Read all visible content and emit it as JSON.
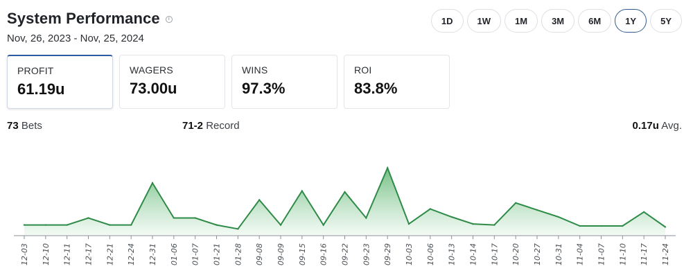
{
  "header": {
    "title": "System Performance",
    "info_icon": "info-icon",
    "date_range": "Nov, 26, 2023 - Nov, 25, 2024"
  },
  "ranges": [
    "1D",
    "1W",
    "1M",
    "3M",
    "6M",
    "1Y",
    "5Y"
  ],
  "active_range": "1Y",
  "stats": [
    {
      "label": "PROFIT",
      "value": "61.19u"
    },
    {
      "label": "WAGERS",
      "value": "73.00u"
    },
    {
      "label": "WINS",
      "value": "97.3%"
    },
    {
      "label": "ROI",
      "value": "83.8%"
    }
  ],
  "summary": {
    "bets_value": "73",
    "bets_label": "Bets",
    "record_value": "71-2",
    "record_label": "Record",
    "avg_value": "0.17u",
    "avg_label": "Avg."
  },
  "colors": {
    "line": "#2e8b47",
    "fill_top": "#5cb46f",
    "fill_bottom": "#e9f6ec",
    "active_border": "#2f5c8f"
  },
  "chart_data": {
    "type": "area",
    "x": [
      "12-03",
      "12-10",
      "12-11",
      "12-17",
      "12-21",
      "12-24",
      "12-31",
      "01-06",
      "01-07",
      "01-21",
      "01-28",
      "09-08",
      "09-09",
      "09-15",
      "09-16",
      "09-22",
      "09-23",
      "09-29",
      "10-03",
      "10-06",
      "10-13",
      "10-14",
      "10-17",
      "10-20",
      "10-27",
      "10-31",
      "11-04",
      "11-07",
      "11-10",
      "11-17",
      "11-24"
    ],
    "values": [
      1.0,
      1.0,
      1.0,
      1.7,
      1.0,
      1.0,
      5.2,
      1.7,
      1.7,
      1.0,
      0.6,
      3.5,
      1.0,
      4.4,
      1.0,
      4.3,
      1.7,
      6.7,
      1.1,
      2.6,
      1.8,
      1.1,
      1.0,
      3.2,
      2.5,
      1.8,
      0.9,
      0.9,
      0.9,
      2.3,
      0.8
    ],
    "ylim": [
      0,
      7
    ],
    "grid": false,
    "legend": "none"
  }
}
